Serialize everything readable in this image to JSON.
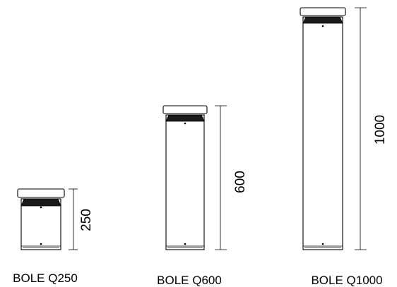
{
  "products": [
    {
      "name": "BOLE Q250",
      "height": "250"
    },
    {
      "name": "BOLE Q600",
      "height": "600"
    },
    {
      "name": "BOLE Q1000",
      "height": "1000"
    }
  ]
}
